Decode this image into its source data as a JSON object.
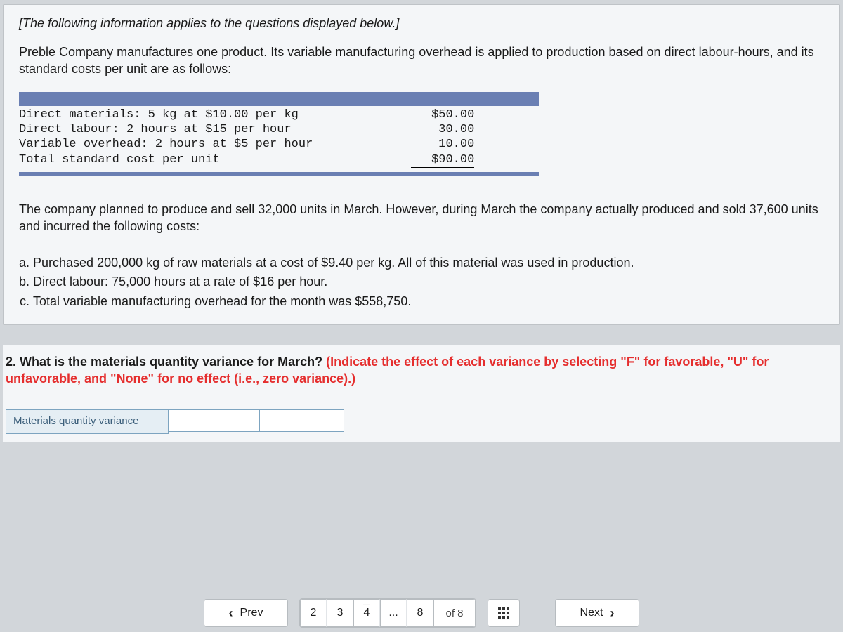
{
  "note": "[The following information applies to the questions displayed below.]",
  "intro": "Preble Company manufactures one product. Its variable manufacturing overhead is applied to production based on direct labour-hours, and its standard costs per unit are as follows:",
  "cost_rows": [
    {
      "desc": "Direct materials: 5 kg at $10.00 per kg",
      "amt": "$50.00"
    },
    {
      "desc": "Direct labour: 2 hours at $15 per hour",
      "amt": "30.00"
    },
    {
      "desc": "Variable overhead: 2 hours at $5 per hour",
      "amt": "10.00"
    }
  ],
  "cost_total": {
    "desc": "Total standard cost per unit",
    "amt": "$90.00"
  },
  "para2": "The company planned to produce and sell 32,000 units in March.  However, during March the company actually produced and sold 37,600 units and incurred the following costs:",
  "abc": {
    "a": "Purchased 200,000 kg of raw materials at a cost of $9.40 per kg. All of this material was used in production.",
    "b": "Direct labour: 75,000 hours at a rate of $16 per hour.",
    "c": "Total variable manufacturing overhead for the month was $558,750."
  },
  "q2": {
    "lead": "2. What is the materials quantity variance for March? ",
    "hint": "(Indicate the effect of each variance by selecting \"F\" for favorable, \"U\" for unfavorable, and \"None\" for no effect (i.e., zero variance).)"
  },
  "answer_label": "Materials quantity variance",
  "pager": {
    "prev": "Prev",
    "next": "Next",
    "pages": [
      "2",
      "3",
      "4",
      "...",
      "8"
    ],
    "linked_index": 2,
    "of_label": "of 8"
  },
  "colors": {
    "page_bg": "#d2d6da",
    "panel_bg": "#f4f6f8",
    "blue_bar": "#6a7fb3",
    "hint_red": "#e52e2e",
    "cell_bg": "#e5eef4",
    "cell_border": "#7da4c0"
  }
}
